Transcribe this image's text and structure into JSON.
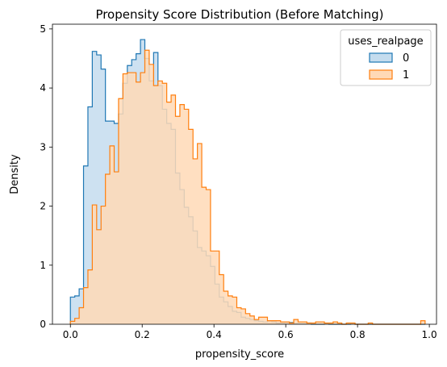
{
  "chart_data": {
    "type": "histogram",
    "title": "Propensity Score Distribution (Before Matching)",
    "xlabel": "propensity_score",
    "ylabel": "Density",
    "xlim": [
      -0.05,
      1.02
    ],
    "ylim": [
      0,
      5.08
    ],
    "xticks": [
      0.0,
      0.2,
      0.4,
      0.6,
      0.8,
      1.0
    ],
    "xtick_labels": [
      "0.0",
      "0.2",
      "0.4",
      "0.6",
      "0.8",
      "1.0"
    ],
    "yticks": [
      0,
      1,
      2,
      3,
      4,
      5
    ],
    "ytick_labels": [
      "0",
      "1",
      "2",
      "3",
      "4",
      "5"
    ],
    "grid": false,
    "legend": {
      "title": "uses_realpage",
      "position": "top-right"
    },
    "bin_start": 0.0,
    "bin_width": 0.0122,
    "series": [
      {
        "name": "0",
        "color": "#1f77b4",
        "fill": "#c4dcee",
        "values": [
          0.46,
          0.48,
          0.6,
          2.68,
          3.68,
          4.62,
          4.56,
          4.32,
          3.44,
          3.44,
          3.4,
          3.56,
          4.08,
          4.38,
          4.48,
          4.58,
          4.82,
          4.5,
          4.12,
          4.6,
          4.04,
          3.64,
          3.4,
          3.3,
          2.56,
          2.28,
          1.98,
          1.82,
          1.58,
          1.3,
          1.24,
          1.16,
          0.98,
          0.68,
          0.46,
          0.38,
          0.3,
          0.22,
          0.2,
          0.12,
          0.1,
          0.08,
          0.06,
          0.05,
          0.04,
          0.06,
          0.04,
          0.02,
          0.02,
          0.02,
          0.03,
          0.01,
          0.01,
          0.01,
          0.02,
          0.0,
          0.0,
          0.0,
          0.01,
          0.0,
          0.0,
          0.0,
          0.0,
          0.0,
          0.01,
          0.0,
          0.0,
          0.0,
          0.0,
          0.0,
          0.0,
          0.0,
          0.0,
          0.0,
          0.0,
          0.0,
          0.0,
          0.0,
          0.0,
          0.0,
          0.0
        ]
      },
      {
        "name": "1",
        "color": "#ff7f0e",
        "fill": "#ffd9b6",
        "values": [
          0.05,
          0.1,
          0.28,
          0.62,
          0.92,
          2.02,
          1.6,
          2.0,
          2.54,
          3.02,
          2.58,
          3.82,
          4.24,
          4.26,
          4.26,
          4.1,
          4.26,
          4.64,
          4.4,
          4.04,
          4.12,
          4.08,
          3.76,
          3.88,
          3.52,
          3.72,
          3.64,
          3.3,
          2.8,
          3.06,
          2.32,
          2.28,
          1.24,
          1.24,
          0.84,
          0.56,
          0.48,
          0.46,
          0.28,
          0.26,
          0.18,
          0.14,
          0.08,
          0.12,
          0.12,
          0.06,
          0.06,
          0.06,
          0.04,
          0.04,
          0.02,
          0.08,
          0.04,
          0.04,
          0.02,
          0.02,
          0.04,
          0.04,
          0.02,
          0.02,
          0.04,
          0.02,
          0.0,
          0.02,
          0.02,
          0.0,
          0.0,
          0.0,
          0.02,
          0.0,
          0.0,
          0.0,
          0.0,
          0.0,
          0.0,
          0.0,
          0.0,
          0.0,
          0.0,
          0.0,
          0.06
        ]
      }
    ]
  }
}
